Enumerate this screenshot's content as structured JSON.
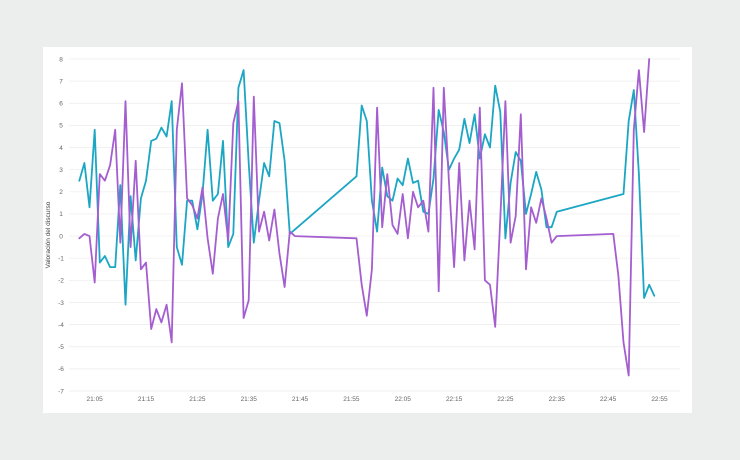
{
  "chart_data": {
    "type": "line",
    "ylabel": "Valoración del discurso",
    "xlabel": "",
    "ylim": [
      -7,
      8
    ],
    "yticks": [
      -7,
      -6,
      -5,
      -4,
      -3,
      -2,
      -1,
      0,
      1,
      2,
      3,
      4,
      5,
      6,
      7,
      8
    ],
    "xlim": [
      "21:00",
      "22:59"
    ],
    "xticks": [
      "21:05",
      "21:15",
      "21:25",
      "21:35",
      "21:45",
      "21:55",
      "22:05",
      "22:15",
      "22:25",
      "22:35",
      "22:45",
      "22:55"
    ],
    "grid": true,
    "series": [
      {
        "color": "#1ba6c4",
        "points": [
          [
            "21:02",
            2.5
          ],
          [
            "21:03",
            3.3
          ],
          [
            "21:04",
            1.3
          ],
          [
            "21:05",
            4.8
          ],
          [
            "21:06",
            -1.2
          ],
          [
            "21:07",
            -0.9
          ],
          [
            "21:08",
            -1.4
          ],
          [
            "21:09",
            -1.4
          ],
          [
            "21:10",
            2.3
          ],
          [
            "21:11",
            -3.1
          ],
          [
            "21:12",
            1.8
          ],
          [
            "21:13",
            -1.1
          ],
          [
            "21:14",
            1.7
          ],
          [
            "21:15",
            2.5
          ],
          [
            "21:16",
            4.3
          ],
          [
            "21:17",
            4.4
          ],
          [
            "21:18",
            4.9
          ],
          [
            "21:19",
            4.5
          ],
          [
            "21:20",
            6.1
          ],
          [
            "21:21",
            -0.5
          ],
          [
            "21:22",
            -1.3
          ],
          [
            "21:23",
            1.6
          ],
          [
            "21:24",
            1.6
          ],
          [
            "21:25",
            0.3
          ],
          [
            "21:26",
            1.9
          ],
          [
            "21:27",
            4.8
          ],
          [
            "21:28",
            1.6
          ],
          [
            "21:29",
            1.9
          ],
          [
            "21:30",
            4.3
          ],
          [
            "21:31",
            -0.5
          ],
          [
            "21:32",
            0.1
          ],
          [
            "21:33",
            6.7
          ],
          [
            "21:34",
            7.5
          ],
          [
            "21:35",
            3.3
          ],
          [
            "21:36",
            -0.3
          ],
          [
            "21:37",
            1.6
          ],
          [
            "21:38",
            3.3
          ],
          [
            "21:39",
            2.7
          ],
          [
            "21:40",
            5.2
          ],
          [
            "21:41",
            5.1
          ],
          [
            "21:42",
            3.4
          ],
          [
            "21:43",
            0.1
          ],
          [
            "21:56",
            2.7
          ],
          [
            "21:57",
            5.9
          ],
          [
            "21:58",
            5.2
          ],
          [
            "21:59",
            1.6
          ],
          [
            "22:00",
            0.2
          ],
          [
            "22:01",
            3.1
          ],
          [
            "22:02",
            1.8
          ],
          [
            "22:03",
            1.6
          ],
          [
            "22:04",
            2.6
          ],
          [
            "22:05",
            2.3
          ],
          [
            "22:06",
            3.5
          ],
          [
            "22:07",
            2.4
          ],
          [
            "22:08",
            2.5
          ],
          [
            "22:09",
            1.1
          ],
          [
            "22:10",
            1.0
          ],
          [
            "22:11",
            2.6
          ],
          [
            "22:12",
            5.7
          ],
          [
            "22:13",
            4.7
          ],
          [
            "22:14",
            3.0
          ],
          [
            "22:15",
            3.5
          ],
          [
            "22:16",
            3.9
          ],
          [
            "22:17",
            5.3
          ],
          [
            "22:18",
            4.2
          ],
          [
            "22:19",
            5.5
          ],
          [
            "22:20",
            3.5
          ],
          [
            "22:21",
            4.6
          ],
          [
            "22:22",
            4.0
          ],
          [
            "22:23",
            6.8
          ],
          [
            "22:24",
            5.6
          ],
          [
            "22:25",
            -0.1
          ],
          [
            "22:26",
            2.4
          ],
          [
            "22:27",
            3.8
          ],
          [
            "22:28",
            3.4
          ],
          [
            "22:29",
            1.0
          ],
          [
            "22:30",
            1.9
          ],
          [
            "22:31",
            2.9
          ],
          [
            "22:32",
            2.1
          ],
          [
            "22:33",
            0.4
          ],
          [
            "22:34",
            0.4
          ],
          [
            "22:35",
            1.1
          ],
          [
            "22:48",
            1.9
          ],
          [
            "22:49",
            5.2
          ],
          [
            "22:50",
            6.6
          ],
          [
            "22:51",
            2.8
          ],
          [
            "22:52",
            -2.8
          ],
          [
            "22:53",
            -2.2
          ],
          [
            "22:54",
            -2.7
          ]
        ]
      },
      {
        "color": "#a45ed0",
        "points": [
          [
            "21:02",
            -0.1
          ],
          [
            "21:03",
            0.1
          ],
          [
            "21:04",
            0.0
          ],
          [
            "21:05",
            -2.1
          ],
          [
            "21:06",
            2.8
          ],
          [
            "21:07",
            2.5
          ],
          [
            "21:08",
            3.2
          ],
          [
            "21:09",
            4.8
          ],
          [
            "21:10",
            -0.3
          ],
          [
            "21:11",
            6.1
          ],
          [
            "21:12",
            -0.5
          ],
          [
            "21:13",
            3.4
          ],
          [
            "21:14",
            -1.5
          ],
          [
            "21:15",
            -1.2
          ],
          [
            "21:16",
            -4.2
          ],
          [
            "21:17",
            -3.3
          ],
          [
            "21:18",
            -3.9
          ],
          [
            "21:19",
            -3.1
          ],
          [
            "21:20",
            -4.8
          ],
          [
            "21:21",
            4.8
          ],
          [
            "21:22",
            6.9
          ],
          [
            "21:23",
            1.7
          ],
          [
            "21:24",
            1.4
          ],
          [
            "21:25",
            0.8
          ],
          [
            "21:26",
            2.2
          ],
          [
            "21:27",
            -0.1
          ],
          [
            "21:28",
            -1.7
          ],
          [
            "21:29",
            0.8
          ],
          [
            "21:30",
            1.9
          ],
          [
            "21:31",
            -0.2
          ],
          [
            "21:32",
            5.1
          ],
          [
            "21:33",
            6.1
          ],
          [
            "21:34",
            -3.7
          ],
          [
            "21:35",
            -2.9
          ],
          [
            "21:36",
            6.3
          ],
          [
            "21:37",
            0.2
          ],
          [
            "21:38",
            1.1
          ],
          [
            "21:39",
            -0.2
          ],
          [
            "21:40",
            1.2
          ],
          [
            "21:41",
            -0.8
          ],
          [
            "21:42",
            -2.3
          ],
          [
            "21:43",
            0.2
          ],
          [
            "21:44",
            0.0
          ],
          [
            "21:56",
            -0.1
          ],
          [
            "21:57",
            -2.2
          ],
          [
            "21:58",
            -3.6
          ],
          [
            "21:59",
            -1.5
          ],
          [
            "22:00",
            5.8
          ],
          [
            "22:01",
            0.4
          ],
          [
            "22:02",
            2.8
          ],
          [
            "22:03",
            0.5
          ],
          [
            "22:04",
            0.1
          ],
          [
            "22:05",
            1.9
          ],
          [
            "22:06",
            -0.1
          ],
          [
            "22:07",
            2.0
          ],
          [
            "22:08",
            1.3
          ],
          [
            "22:09",
            1.6
          ],
          [
            "22:10",
            0.2
          ],
          [
            "22:11",
            6.7
          ],
          [
            "22:12",
            -2.5
          ],
          [
            "22:13",
            6.7
          ],
          [
            "22:14",
            2.5
          ],
          [
            "22:15",
            -1.4
          ],
          [
            "22:16",
            3.3
          ],
          [
            "22:17",
            -1.1
          ],
          [
            "22:18",
            1.6
          ],
          [
            "22:19",
            -0.6
          ],
          [
            "22:20",
            5.8
          ],
          [
            "22:21",
            -2.0
          ],
          [
            "22:22",
            -2.2
          ],
          [
            "22:23",
            -4.1
          ],
          [
            "22:24",
            0.8
          ],
          [
            "22:25",
            6.1
          ],
          [
            "22:26",
            -0.3
          ],
          [
            "22:27",
            0.9
          ],
          [
            "22:28",
            5.5
          ],
          [
            "22:29",
            -1.5
          ],
          [
            "22:30",
            1.3
          ],
          [
            "22:31",
            0.6
          ],
          [
            "22:32",
            1.7
          ],
          [
            "22:33",
            0.8
          ],
          [
            "22:34",
            -0.3
          ],
          [
            "22:35",
            0.0
          ],
          [
            "22:46",
            0.1
          ],
          [
            "22:47",
            -1.8
          ],
          [
            "22:48",
            -4.8
          ],
          [
            "22:49",
            -6.3
          ],
          [
            "22:50",
            4.8
          ],
          [
            "22:51",
            7.5
          ],
          [
            "22:52",
            4.7
          ],
          [
            "22:53",
            8.0
          ]
        ]
      }
    ]
  }
}
